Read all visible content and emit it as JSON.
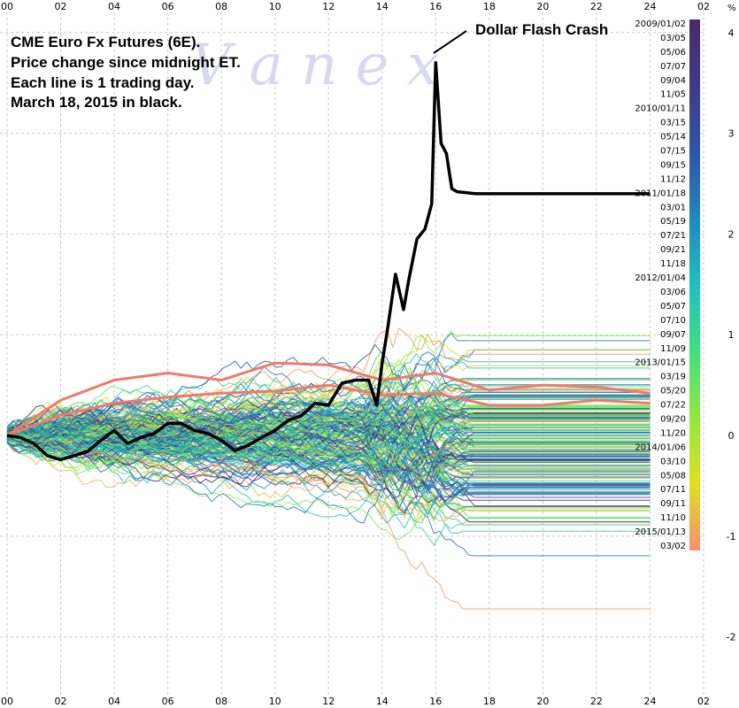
{
  "chart_data": {
    "type": "line",
    "title_lines": [
      "CME Euro Fx Futures (6E).",
      "Price change since midnight ET.",
      "Each line is 1 trading day.",
      "March 18, 2015 in black."
    ],
    "annotation": "Dollar Flash Crash",
    "watermark": "V a n e x",
    "xlabel": "",
    "ylabel": "",
    "xlim": [
      0,
      26
    ],
    "ylim": [
      -2.6,
      4.2
    ],
    "x_tick_labels": [
      "00",
      "02",
      "04",
      "06",
      "08",
      "10",
      "12",
      "14",
      "16",
      "18",
      "20",
      "22",
      "24",
      "02"
    ],
    "right_axis_unit": "%",
    "right_axis_ticks": [
      {
        "label": "4",
        "value": 4
      },
      {
        "label": "3",
        "value": 3
      },
      {
        "label": "2",
        "value": 2
      },
      {
        "label": "1",
        "value": 1
      },
      {
        "label": "0",
        "value": 0
      },
      {
        "label": "-1",
        "value": -1
      },
      {
        "label": "-2",
        "value": -2
      }
    ],
    "grid": true,
    "colorbar_labels": [
      "2009/01/02",
      "03/05",
      "05/06",
      "07/07",
      "09/04",
      "11/05",
      "2010/01/11",
      "03/15",
      "05/14",
      "07/15",
      "09/15",
      "11/12",
      "2011/01/18",
      "03/01",
      "05/19",
      "07/21",
      "09/21",
      "11/18",
      "2012/01/04",
      "03/06",
      "05/07",
      "07/10",
      "09/07",
      "11/09",
      "2013/01/15",
      "03/19",
      "05/20",
      "07/22",
      "09/20",
      "11/20",
      "2014/01/06",
      "03/10",
      "05/08",
      "07/11",
      "09/11",
      "11/10",
      "2015/01/13",
      "03/02"
    ],
    "colorbar_colors": [
      "#4a2a6a",
      "#3f3a8a",
      "#2f56a8",
      "#1f88c0",
      "#1fc0c0",
      "#40e080",
      "#90e840",
      "#e0e020",
      "#f59070"
    ],
    "highlight_series": {
      "name": "March 18, 2015",
      "color": "#000000",
      "points": [
        [
          0,
          0
        ],
        [
          0.5,
          -0.02
        ],
        [
          1,
          -0.08
        ],
        [
          1.5,
          -0.2
        ],
        [
          2,
          -0.24
        ],
        [
          2.5,
          -0.2
        ],
        [
          3,
          -0.16
        ],
        [
          3.5,
          -0.05
        ],
        [
          4,
          0.05
        ],
        [
          4.5,
          -0.08
        ],
        [
          5,
          -0.02
        ],
        [
          5.5,
          0.02
        ],
        [
          6,
          0.12
        ],
        [
          6.5,
          0.12
        ],
        [
          7,
          0.05
        ],
        [
          7.5,
          0.02
        ],
        [
          8,
          -0.05
        ],
        [
          8.5,
          -0.15
        ],
        [
          9,
          -0.1
        ],
        [
          9.5,
          -0.02
        ],
        [
          10,
          0.05
        ],
        [
          10.5,
          0.15
        ],
        [
          11,
          0.2
        ],
        [
          11.5,
          0.32
        ],
        [
          12,
          0.3
        ],
        [
          12.5,
          0.52
        ],
        [
          13,
          0.55
        ],
        [
          13.5,
          0.55
        ],
        [
          13.8,
          0.3
        ],
        [
          14,
          0.72
        ],
        [
          14.2,
          1.05
        ],
        [
          14.5,
          1.6
        ],
        [
          14.8,
          1.25
        ],
        [
          15,
          1.55
        ],
        [
          15.3,
          1.95
        ],
        [
          15.6,
          2.05
        ],
        [
          15.85,
          2.3
        ],
        [
          16,
          3.7
        ],
        [
          16.2,
          2.9
        ],
        [
          16.4,
          2.8
        ],
        [
          16.6,
          2.45
        ],
        [
          16.8,
          2.42
        ],
        [
          17.5,
          2.4
        ],
        [
          20,
          2.4
        ],
        [
          24,
          2.4
        ]
      ]
    },
    "salmon_series": [
      {
        "name": "",
        "color": "#f07a6a",
        "points": [
          [
            0,
            0
          ],
          [
            2,
            0.35
          ],
          [
            4,
            0.55
          ],
          [
            6,
            0.62
          ],
          [
            8,
            0.55
          ],
          [
            10,
            0.72
          ],
          [
            12,
            0.7
          ],
          [
            14,
            0.55
          ],
          [
            16,
            0.62
          ],
          [
            18,
            0.45
          ],
          [
            20,
            0.5
          ],
          [
            22,
            0.48
          ],
          [
            24,
            0.42
          ]
        ]
      },
      {
        "name": "",
        "color": "#f07a6a",
        "points": [
          [
            0,
            0
          ],
          [
            2,
            0.2
          ],
          [
            4,
            0.32
          ],
          [
            6,
            0.38
          ],
          [
            8,
            0.42
          ],
          [
            10,
            0.44
          ],
          [
            12,
            0.5
          ],
          [
            14,
            0.4
          ],
          [
            16,
            0.42
          ],
          [
            18,
            0.3
          ],
          [
            20,
            0.3
          ],
          [
            22,
            0.35
          ],
          [
            24,
            0.32
          ]
        ]
      }
    ]
  }
}
